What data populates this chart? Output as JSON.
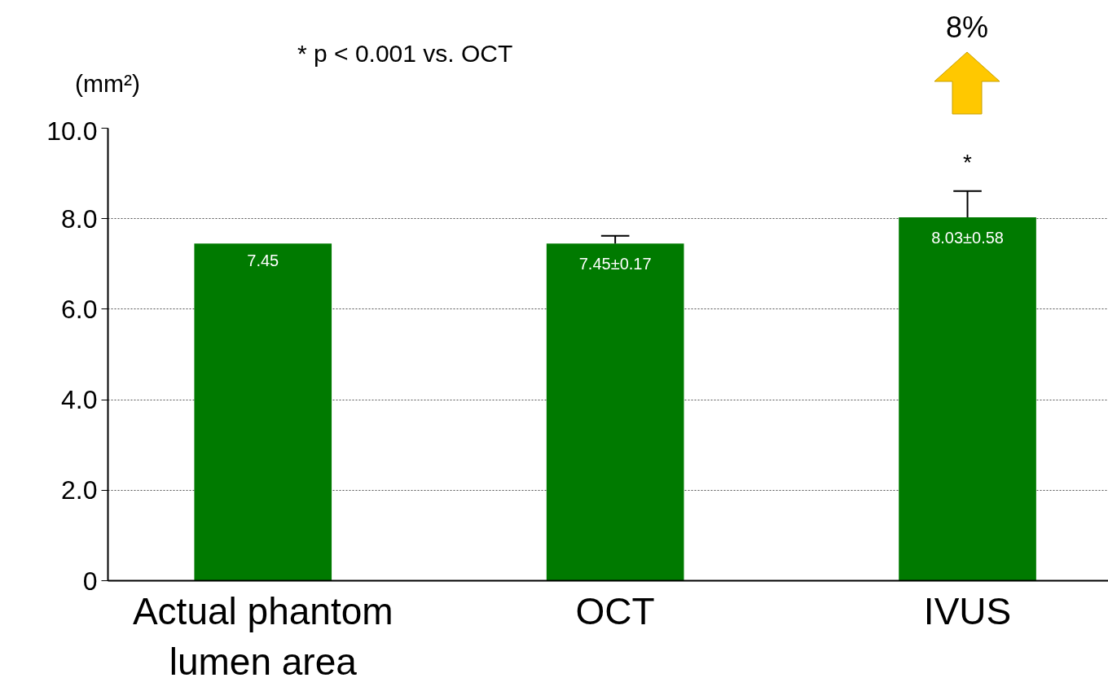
{
  "chart_data": {
    "type": "bar",
    "ylabel": "(mm²)",
    "categories": [
      "Actual phantom\nlumen area",
      "OCT",
      "IVUS"
    ],
    "values": [
      7.45,
      7.45,
      8.03
    ],
    "errors": [
      null,
      [
        7.45,
        7.62
      ],
      [
        8.03,
        8.61
      ]
    ],
    "value_labels": [
      "7.45",
      "7.45±0.17",
      "8.03±0.58"
    ],
    "color": "#007a00",
    "ylim": [
      0,
      10
    ],
    "yticks": [
      {
        "value": 0,
        "label": "0"
      },
      {
        "value": 2,
        "label": "2.0"
      },
      {
        "value": 4,
        "label": "4.0"
      },
      {
        "value": 6,
        "label": "6.0"
      },
      {
        "value": 8,
        "label": "8.0"
      },
      {
        "value": 10,
        "label": "10.0"
      }
    ],
    "grid": "y",
    "annotations": [
      "* p < 0.001 vs. OCT",
      "*",
      "8%"
    ]
  }
}
